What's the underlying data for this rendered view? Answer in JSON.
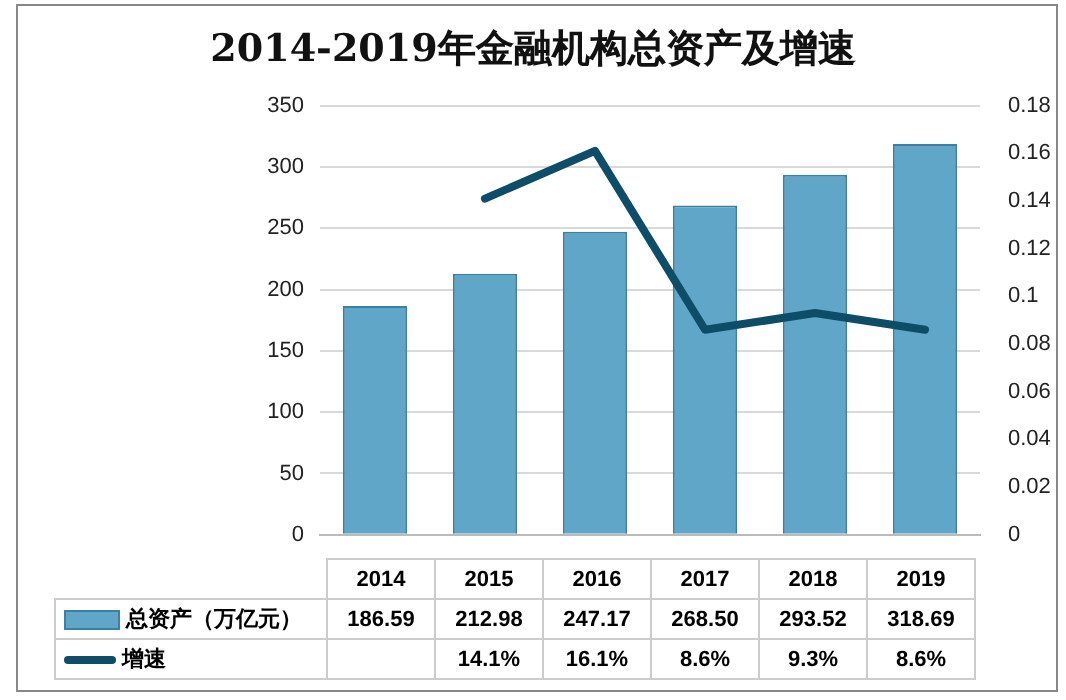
{
  "chart_data": {
    "type": "bar",
    "title": "2014-2019年金融机构总资产及增速",
    "categories": [
      "2014",
      "2015",
      "2016",
      "2017",
      "2018",
      "2019"
    ],
    "series": [
      {
        "name": "总资产（万亿元）",
        "color": "#5fa6c8",
        "values": [
          186.59,
          212.98,
          247.17,
          268.5,
          293.52,
          318.69
        ],
        "value_labels": [
          "186.59",
          "212.98",
          "247.17",
          "268.50",
          "293.52",
          "318.69"
        ]
      },
      {
        "name": "增速",
        "type": "line",
        "axis": "y2",
        "color": "#0e4d68",
        "values": [
          null,
          0.141,
          0.161,
          0.086,
          0.093,
          0.086
        ],
        "value_labels": [
          null,
          "14.1%",
          "16.1%",
          "8.6%",
          "9.3%",
          "8.6%"
        ]
      }
    ],
    "ylim": [
      0,
      350
    ],
    "yticks": [
      0,
      50,
      100,
      150,
      200,
      250,
      300,
      350
    ],
    "y2lim": [
      0,
      0.18
    ],
    "y2ticks": [
      0,
      0.02,
      0.04,
      0.06,
      0.08,
      0.1,
      0.12,
      0.14,
      0.16,
      0.18
    ],
    "grid": "y",
    "legend": "bottom",
    "marker": "none",
    "line_style": "solid"
  }
}
